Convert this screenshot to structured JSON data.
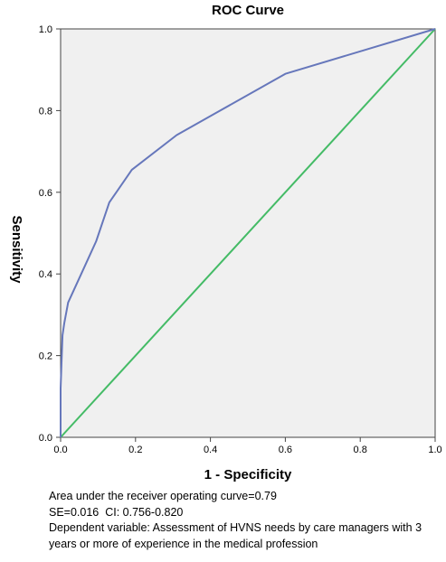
{
  "chart_data": {
    "type": "line",
    "title": "ROC Curve",
    "xlabel": "1 - Specificity",
    "ylabel": "Sensitivity",
    "xlim": [
      0,
      1
    ],
    "ylim": [
      0,
      1
    ],
    "x_ticks": [
      "0.0",
      "0.2",
      "0.4",
      "0.6",
      "0.8",
      "1.0"
    ],
    "y_ticks": [
      "0.0",
      "0.2",
      "0.4",
      "0.6",
      "0.8",
      "1.0"
    ],
    "grid": false,
    "legend": "none",
    "plot_background": "#f0f0f0",
    "series": [
      {
        "color": "#6677bb",
        "x": [
          0,
          0.0,
          0.005,
          0.01,
          0.02,
          0.035,
          0.065,
          0.095,
          0.13,
          0.19,
          0.31,
          0.6,
          1.0
        ],
        "y": [
          0,
          0.12,
          0.25,
          0.28,
          0.33,
          0.36,
          0.42,
          0.48,
          0.575,
          0.655,
          0.74,
          0.89,
          1.0
        ]
      },
      {
        "color": "#44bb66",
        "x": [
          0,
          1
        ],
        "y": [
          0,
          1
        ]
      }
    ]
  },
  "caption": {
    "line1": "Area under the receiver operating curve=0.79",
    "line2": "SE=0.016  CI: 0.756-0.820",
    "line3": "Dependent variable: Assessment of HVNS needs by care managers with 3 years or more of experience in the medical profession"
  }
}
